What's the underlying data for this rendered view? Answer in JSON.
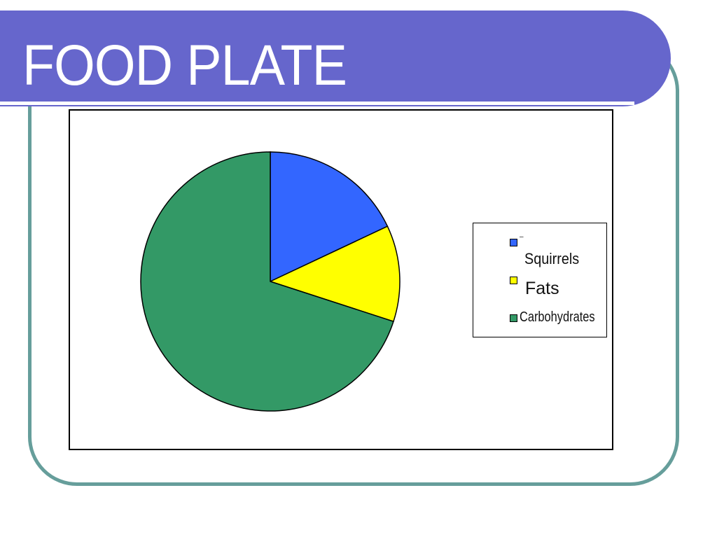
{
  "slide": {
    "title": "FOOD PLATE",
    "colors": {
      "title_bar": "#6666CC",
      "frame": "#669E9B",
      "title_text": "#FFFFFF"
    }
  },
  "chart_data": {
    "type": "pie",
    "title": "",
    "categories": [
      "Squirrels",
      "Fats",
      "Carbohydrates"
    ],
    "values": [
      18,
      12,
      70
    ],
    "colors": [
      "#3366FF",
      "#FFFF00",
      "#339966"
    ],
    "legend": {
      "position": "right",
      "entries": [
        "Squirrels",
        "Fats",
        "Carbohydrates"
      ]
    },
    "start_angle": "12 o'clock, clockwise"
  },
  "legend": {
    "items": [
      {
        "label": "Squirrels",
        "color": "#3366FF"
      },
      {
        "label": "Fats",
        "color": "#FFFF00"
      },
      {
        "label": "Carbohydrates",
        "color": "#339966"
      }
    ]
  }
}
